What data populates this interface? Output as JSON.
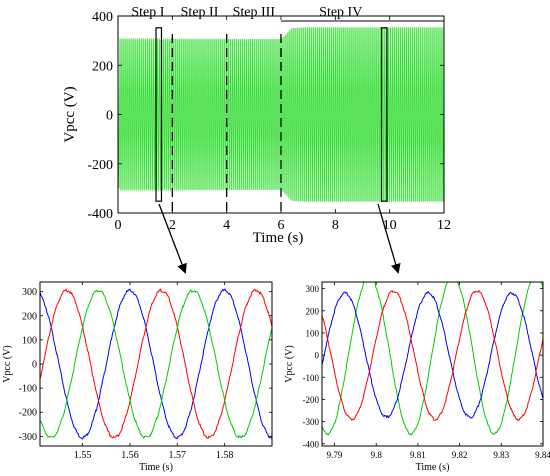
{
  "chart_data": [
    {
      "type": "line",
      "id": "top",
      "xlabel": "Time  (s)",
      "ylabel": "Vpcc (V)",
      "xlim": [
        0,
        12
      ],
      "ylim": [
        -400,
        400
      ],
      "xticks": [
        "0",
        "2",
        "4",
        "6",
        "8",
        "10",
        "12"
      ],
      "yticks": [
        "400",
        "200",
        "0",
        "-200",
        "-400"
      ],
      "color": "#33dd33",
      "envelope": [
        {
          "t_start": 0,
          "t_end": 6,
          "amplitude": 310
        },
        {
          "t_start": 6.4,
          "t_end": 12,
          "amplitude": 355
        }
      ],
      "step_boundaries": [
        2,
        4,
        6
      ],
      "step_labels": [
        "Step I",
        "Step II",
        "Step III",
        "Step IV"
      ],
      "zoom_windows": [
        {
          "t_start": 1.4,
          "t_end": 1.6
        },
        {
          "t_start": 9.7,
          "t_end": 9.9
        }
      ]
    },
    {
      "type": "line",
      "id": "bottom-left",
      "xlabel": "Time (s)",
      "ylabel": "Vpcc (V)",
      "xlim": [
        1.541,
        1.59
      ],
      "ylim": [
        -340,
        340
      ],
      "xticks": [
        "1.55",
        "1.56",
        "1.57",
        "1.58"
      ],
      "yticks": [
        "300",
        "200",
        "100",
        "0",
        "-100",
        "-200",
        "-300"
      ],
      "frequency_hz": 50,
      "series": [
        {
          "color": "#0000ff",
          "amplitude": 305,
          "phase_deg": 90
        },
        {
          "color": "#ff0000",
          "amplitude": 305,
          "phase_deg": -30
        },
        {
          "color": "#00cc00",
          "amplitude": 305,
          "phase_deg": 210
        }
      ]
    },
    {
      "type": "line",
      "id": "bottom-right",
      "xlabel": "Time (s)",
      "ylabel": "Vpcc (V)",
      "xlim": [
        9.787,
        9.84
      ],
      "ylim": [
        -410,
        330
      ],
      "xticks": [
        "9.79",
        "9.8",
        "9.81",
        "9.82",
        "9.83",
        "9.84"
      ],
      "yticks": [
        "300",
        "200",
        "100",
        "0",
        "-100",
        "-200",
        "-300",
        "-400"
      ],
      "frequency_hz": 50,
      "series": [
        {
          "color": "#00cc00",
          "amplitude": 355,
          "phase_deg": 120
        },
        {
          "color": "#0000ff",
          "amplitude": 280,
          "phase_deg": -135
        },
        {
          "color": "#ff0000",
          "amplitude": 290,
          "phase_deg": 15
        }
      ]
    }
  ]
}
